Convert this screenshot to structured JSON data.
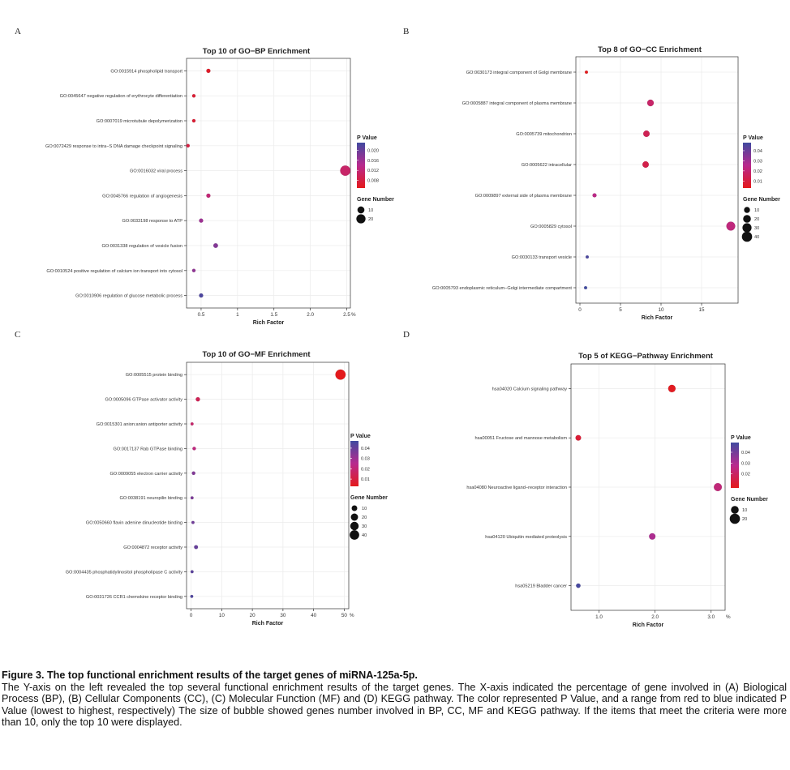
{
  "panel_letters": [
    "A",
    "B",
    "C",
    "D"
  ],
  "chart_data": [
    {
      "type": "scatter",
      "title": "Top 10 of GO−BP Enrichment",
      "xlabel": "Rich Factor",
      "x_suffix": "%",
      "xlim": [
        0.3,
        2.55
      ],
      "xticks": [
        0.5,
        1.0,
        1.5,
        2.0,
        2.5
      ],
      "xtick_labels": [
        "0.5",
        "1",
        "1.5",
        "2.0",
        "2.5"
      ],
      "categories": [
        "GO:0015914 phospholipid transport",
        "GO:0045647 negative regulation of erythrocyte differentiation",
        "GO:0007019 microtubule depolymerization",
        "GO:0072429 response to intra−S DNA damage checkpoint signaling",
        "GO:0016032 viral process",
        "GO:0045766 regulation of angiogenesis",
        "GO:0033198 response to ATP",
        "GO:0031338 regulation of vesicle fusion",
        "GO:0010524 positive regulation of calcium ion transport into cytosol",
        "GO:0010906 regulation of glucose metabolic process"
      ],
      "rich_factor": [
        0.6,
        0.4,
        0.4,
        0.32,
        2.48,
        0.6,
        0.5,
        0.7,
        0.4,
        0.5
      ],
      "p_value": [
        0.006,
        0.007,
        0.007,
        0.008,
        0.011,
        0.012,
        0.016,
        0.018,
        0.017,
        0.022
      ],
      "gene_number": [
        2,
        1,
        1,
        1,
        26,
        2,
        2,
        3,
        1,
        2
      ],
      "color_legend": {
        "title": "P Value",
        "ticks": [
          0.008,
          0.012,
          0.016,
          0.02
        ],
        "tick_labels": [
          "0.008",
          "0.012",
          "0.016",
          "0.020"
        ],
        "range": [
          0.005,
          0.023
        ]
      },
      "size_legend": {
        "title": "Gene Number",
        "values": [
          10,
          20
        ],
        "labels": [
          "10",
          "20"
        ]
      }
    },
    {
      "type": "scatter",
      "title": "Top 8 of GO−CC Enrichment",
      "xlabel": "Rich Factor",
      "x_suffix": "",
      "xlim": [
        -0.5,
        19.5
      ],
      "xticks": [
        0,
        5,
        10,
        15
      ],
      "xtick_labels": [
        "0",
        "5",
        "10",
        "15"
      ],
      "categories": [
        "GO:0030173 integral component of Golgi membrane",
        "GO:0005887 integral component of plasma membrane",
        "GO:0005739 mitochondrion",
        "GO:0005622 intracellular",
        "GO:0009897 external side of plasma membrane",
        "GO:0005829 cytosol",
        "GO:0030133 transport vesicle",
        "GO:0005793 endoplasmic reticulum−Golgi intermediate compartment"
      ],
      "rich_factor": [
        0.8,
        8.7,
        8.2,
        8.1,
        1.8,
        18.6,
        0.9,
        0.7
      ],
      "p_value": [
        0.003,
        0.018,
        0.014,
        0.012,
        0.024,
        0.022,
        0.046,
        0.048
      ],
      "gene_number": [
        1,
        13,
        12,
        12,
        3,
        28,
        1,
        1
      ],
      "color_legend": {
        "title": "P Value",
        "ticks": [
          0.01,
          0.02,
          0.03,
          0.04
        ],
        "tick_labels": [
          "0.01",
          "0.02",
          "0.03",
          "0.04"
        ],
        "range": [
          0.003,
          0.048
        ]
      },
      "size_legend": {
        "title": "Gene Number",
        "values": [
          10,
          20,
          30,
          40
        ],
        "labels": [
          "10",
          "20",
          "30",
          "40"
        ]
      }
    },
    {
      "type": "scatter",
      "title": "Top 10 of GO−MF Enrichment",
      "xlabel": "Rich Factor",
      "x_suffix": "%",
      "xlim": [
        -1.5,
        51.5
      ],
      "xticks": [
        0,
        10,
        20,
        30,
        40,
        50
      ],
      "xtick_labels": [
        "0",
        "10",
        "20",
        "30",
        "40",
        "50"
      ],
      "categories": [
        "GO:0005515 protein binding",
        "GO:0005096 GTPase activator activity",
        "GO:0015301 anion:anion antiporter activity",
        "GO:0017137 Rab GTPase binding",
        "GO:0009055 electron carrier activity",
        "GO:0038191 neuropilin binding",
        "GO:0050660 flavin adenine dinucleotide binding",
        "GO:0004872 receptor activity",
        "GO:0004435 phosphatidylinositol phospholipase C activity",
        "GO:0031726 CCR1 chemokine receptor binding"
      ],
      "rich_factor": [
        48.8,
        2.2,
        0.3,
        1.0,
        0.8,
        0.3,
        0.6,
        1.6,
        0.3,
        0.2
      ],
      "p_value": [
        0.003,
        0.014,
        0.018,
        0.022,
        0.035,
        0.036,
        0.038,
        0.04,
        0.042,
        0.044
      ],
      "gene_number": [
        48,
        4,
        1,
        2,
        2,
        1,
        1,
        3,
        1,
        1
      ],
      "color_legend": {
        "title": "P Value",
        "ticks": [
          0.01,
          0.02,
          0.03,
          0.04
        ],
        "tick_labels": [
          "0.01",
          "0.02",
          "0.03",
          "0.04"
        ],
        "range": [
          0.003,
          0.047
        ]
      },
      "size_legend": {
        "title": "Gene Number",
        "values": [
          10,
          20,
          30,
          40
        ],
        "labels": [
          "10",
          "20",
          "30",
          "40"
        ]
      }
    },
    {
      "type": "scatter",
      "title": "Top 5 of KEGG−Pathway Enrichment",
      "xlabel": "Rich Factor",
      "x_suffix": "%",
      "xlim": [
        0.5,
        3.25
      ],
      "xticks": [
        1.0,
        2.0,
        3.0
      ],
      "xtick_labels": [
        "1.0",
        "2.0",
        "3.0"
      ],
      "categories": [
        "hsa04020 Calcium signaling pathway",
        "hsa00051 Fructose and mannose metabolism",
        "hsa04080 Neuroactive ligand−receptor interaction",
        "hsa04120 Ubiquitin mediated proteolysis",
        "hsa05219 Bladder cancer"
      ],
      "rich_factor": [
        2.3,
        0.63,
        3.12,
        1.95,
        0.63
      ],
      "p_value": [
        0.008,
        0.012,
        0.024,
        0.03,
        0.048
      ],
      "gene_number": [
        9,
        4,
        11,
        6,
        2
      ],
      "color_legend": {
        "title": "P Value",
        "ticks": [
          0.02,
          0.03,
          0.04
        ],
        "tick_labels": [
          "0.02",
          "0.03",
          "0.04"
        ],
        "range": [
          0.007,
          0.049
        ]
      },
      "size_legend": {
        "title": "Gene Number",
        "values": [
          10,
          20
        ],
        "labels": [
          "10",
          "20"
        ]
      }
    }
  ],
  "caption": {
    "title": "Figure 3. The top functional enrichment results of the target genes of miRNA-125a-5p.",
    "body": "The Y-axis on the left revealed the top several functional enrichment results of the target genes. The X-axis indicated the percentage of gene involved in (A) Biological Process (BP), (B) Cellular Components (CC), (C) Molecular Function (MF) and (D) KEGG pathway. The color represented P Value, and a range from red to blue indicated P Value (lowest to highest, respectively) The size of bubble showed genes number involved in BP, CC, MF and KEGG pathway. If the items that meet the criteria were more than 10, only the top 10 were displayed."
  }
}
